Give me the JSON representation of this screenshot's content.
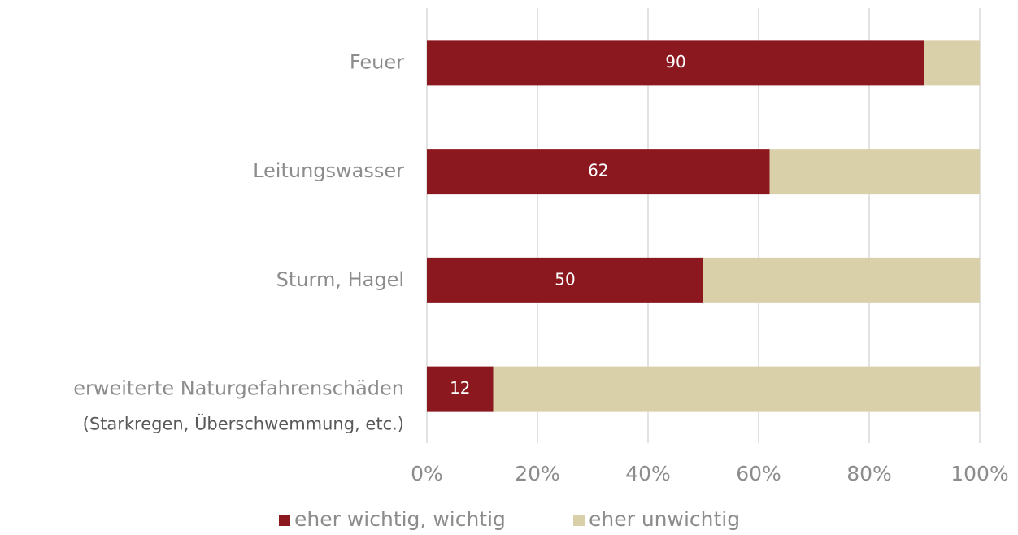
{
  "chart_data": {
    "type": "stacked_bar_horizontal",
    "categories": [
      "Feuer",
      "Leitungswasser",
      "Sturm, Hagel",
      "erweiterte Naturgefahrenschäden"
    ],
    "annotations": [
      {
        "text": "(Starkregen, Überschwemmung, etc.)"
      }
    ],
    "series": [
      {
        "name": "eher wichtig, wichtig",
        "color": "#8a181e",
        "values": [
          90,
          62,
          50,
          12
        ],
        "show_labels": true
      },
      {
        "name": "eher unwichtig",
        "color": "#d9d0aa",
        "values": [
          10,
          38,
          50,
          88
        ],
        "show_labels": false
      }
    ],
    "xlim": [
      0,
      100
    ],
    "xticks": [
      {
        "value": 0,
        "label": "0%"
      },
      {
        "value": 20,
        "label": "20%"
      },
      {
        "value": 40,
        "label": "40%"
      },
      {
        "value": 60,
        "label": "60%"
      },
      {
        "value": 80,
        "label": "80%"
      },
      {
        "value": 100,
        "label": "100%"
      }
    ],
    "grid": true,
    "legend": "bottom"
  }
}
